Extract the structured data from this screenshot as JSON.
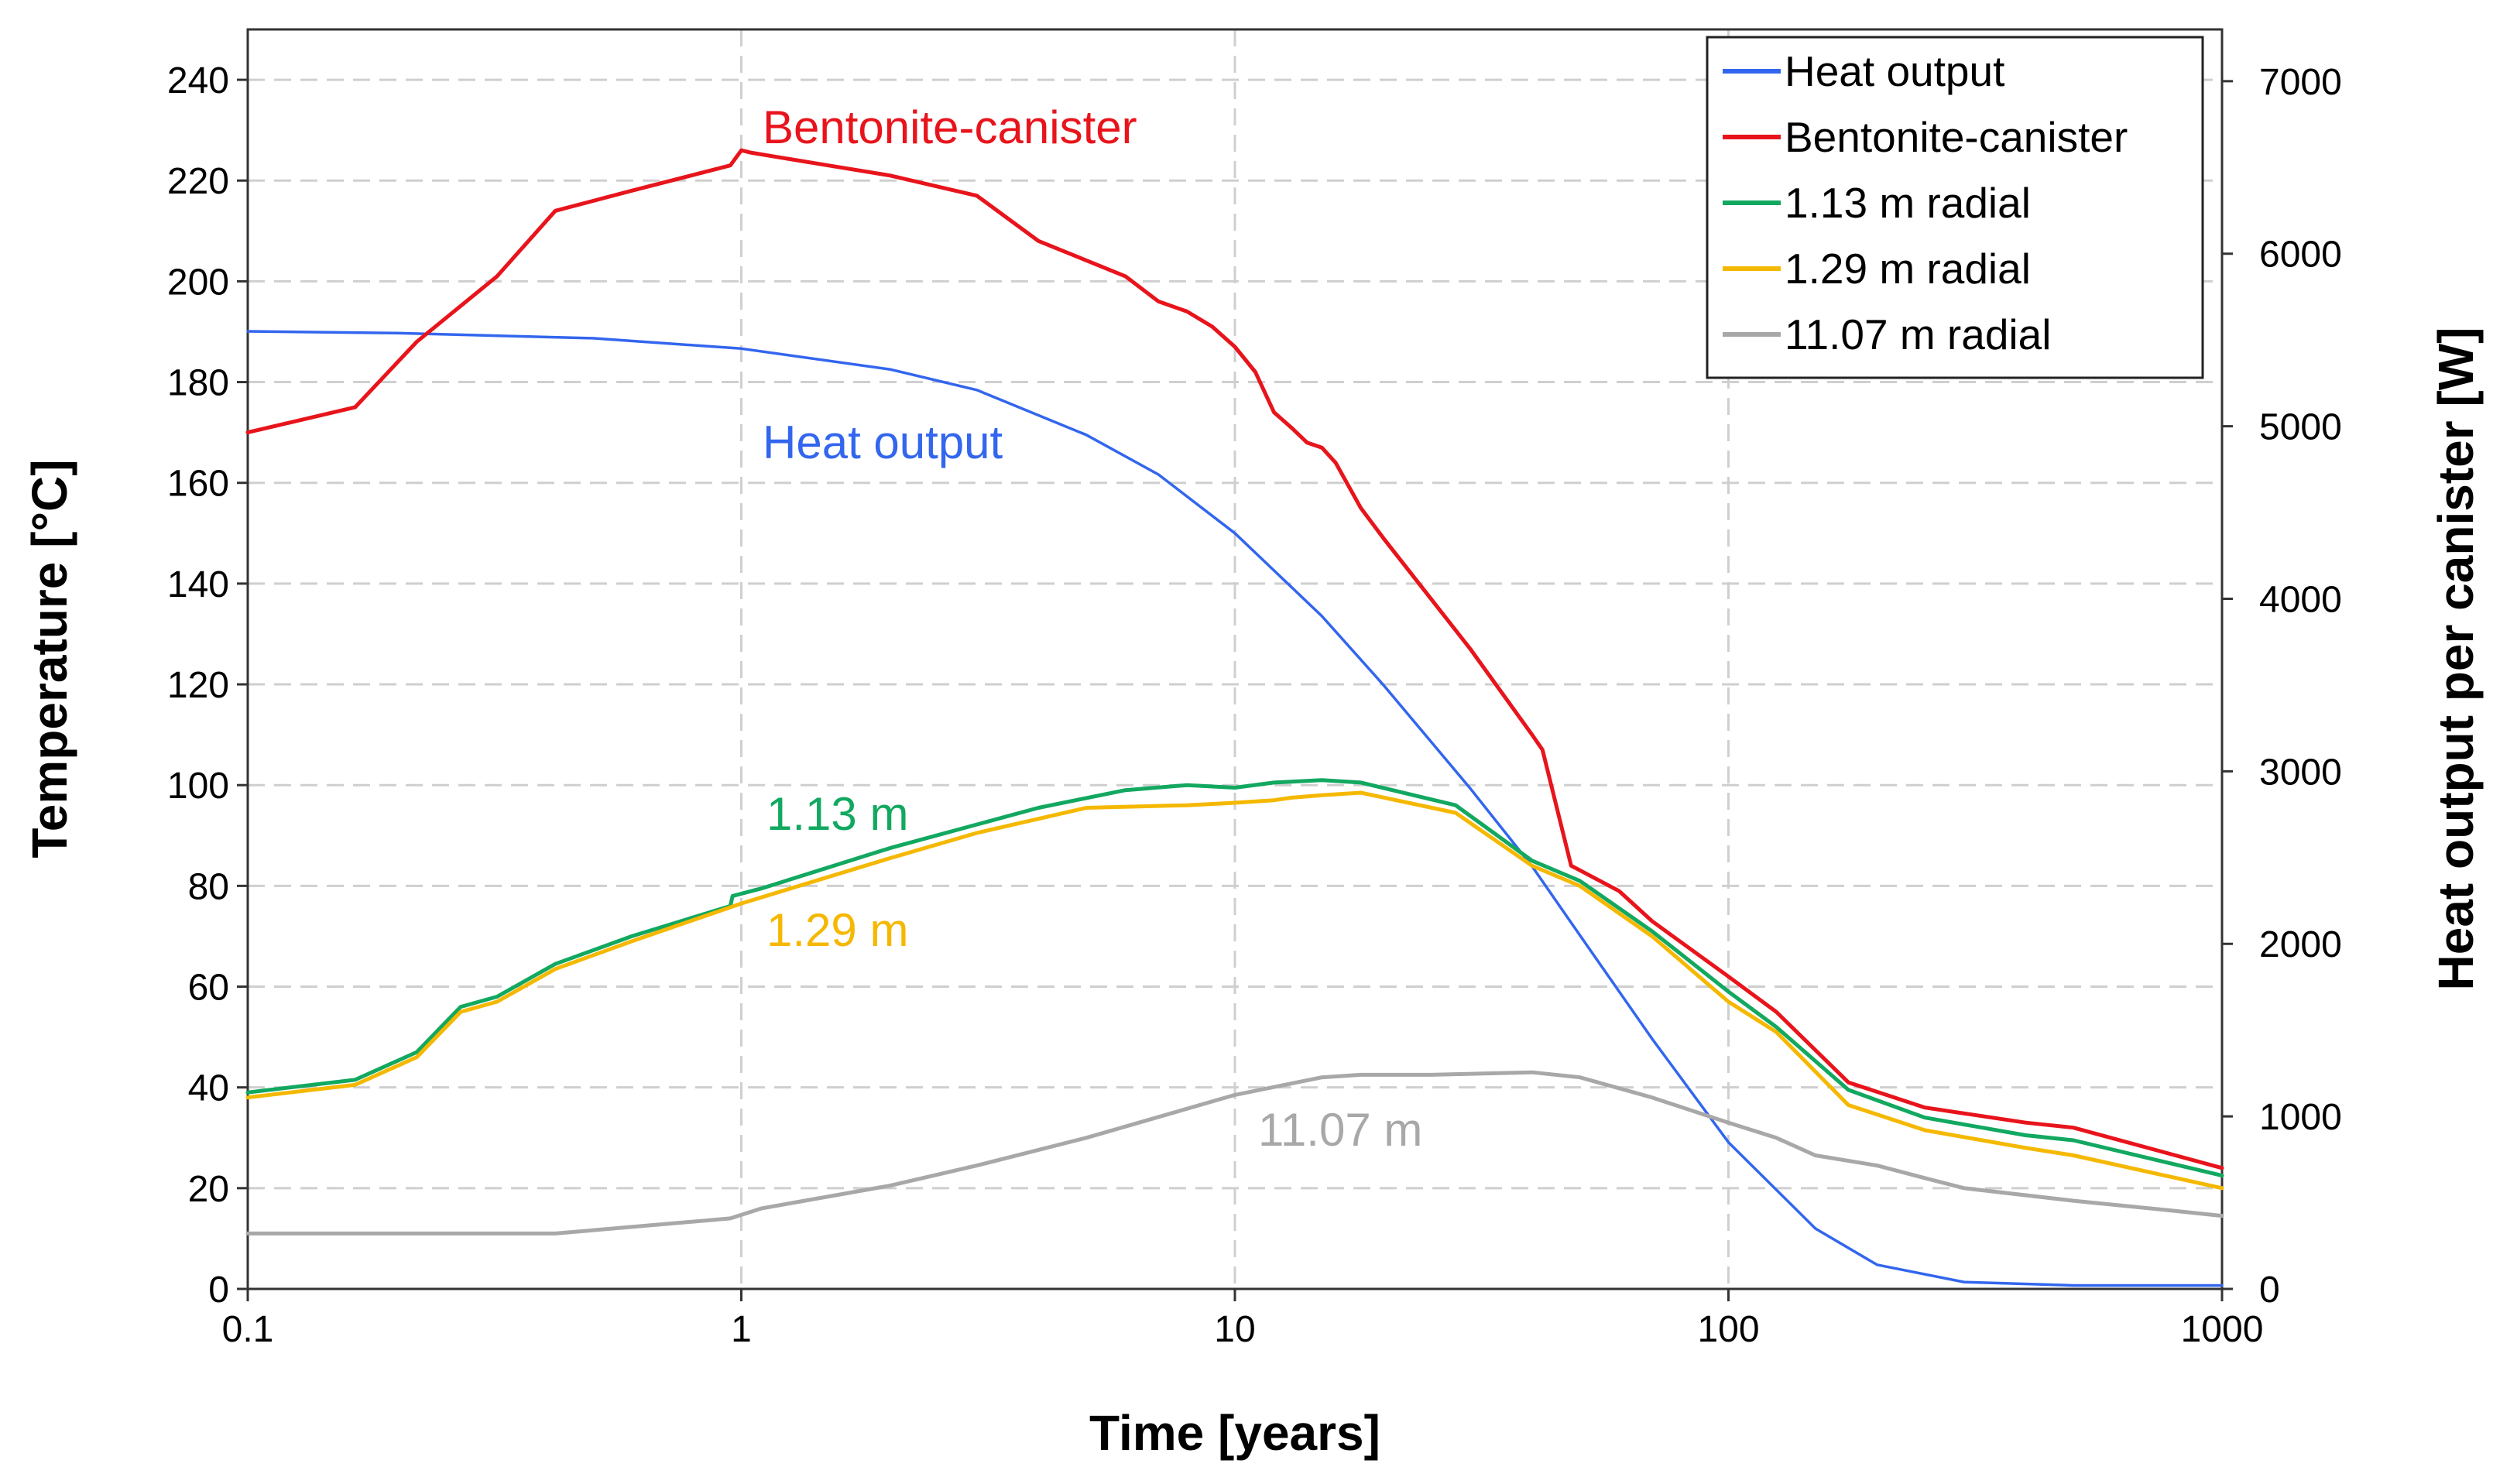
{
  "chart_data": {
    "type": "line",
    "title": "",
    "xlabel": "Time [years]",
    "ylabel": "Temperature [°C]",
    "y2label": "Heat output per canister [W]",
    "xscale": "log",
    "xlim": [
      0.1,
      1000
    ],
    "ylim": [
      0,
      250
    ],
    "y2lim": [
      0,
      7300
    ],
    "x_tick_labels": [
      "0.1",
      "1",
      "10",
      "100",
      "1000"
    ],
    "y_tick_labels": [
      "0",
      "20",
      "40",
      "60",
      "80",
      "100",
      "120",
      "140",
      "160",
      "180",
      "200",
      "220",
      "240"
    ],
    "y2_tick_labels": [
      "0",
      "1000",
      "2000",
      "3000",
      "4000",
      "5000",
      "6000",
      "7000"
    ],
    "grid": true,
    "legend_position": "top-right",
    "series": [
      {
        "name": "Heat output",
        "axis": "right",
        "color": "#3366ee",
        "x": [
          0.1,
          0.2,
          0.5,
          1,
          2,
          3,
          5,
          7,
          10,
          15,
          20,
          30,
          40,
          50,
          70,
          100,
          150,
          200,
          300,
          500,
          1000
        ],
        "values": [
          5550,
          5540,
          5510,
          5450,
          5330,
          5210,
          4950,
          4720,
          4380,
          3900,
          3500,
          2900,
          2450,
          2050,
          1450,
          850,
          350,
          140,
          40,
          20,
          20
        ]
      },
      {
        "name": "Bentonite-canister",
        "axis": "left",
        "color": "#e8141c",
        "x": [
          0.1,
          0.165,
          0.22,
          0.32,
          0.42,
          0.6,
          0.95,
          1.0,
          1.05,
          1.5,
          2,
          3,
          4,
          6,
          7,
          8,
          9,
          10,
          11,
          12,
          13,
          14,
          15,
          16,
          18,
          20,
          30,
          40,
          42,
          48,
          60,
          70,
          100,
          125,
          175,
          250,
          400,
          500,
          1000
        ],
        "values": [
          170,
          175,
          188,
          201,
          214,
          218,
          223,
          226,
          225.5,
          223,
          221,
          217,
          208,
          201,
          196,
          194,
          191,
          187,
          182,
          174,
          171,
          168,
          167,
          164,
          155,
          149,
          127,
          110,
          107,
          84,
          79,
          73,
          62,
          55,
          41,
          36,
          33,
          32,
          24
        ]
      },
      {
        "name": "1.13 m radial",
        "axis": "left",
        "color": "#12a860",
        "x": [
          0.1,
          0.165,
          0.22,
          0.27,
          0.32,
          0.42,
          0.6,
          0.95,
          0.96,
          1.1,
          2,
          4,
          6,
          8,
          10,
          12,
          15,
          18,
          28,
          40,
          50,
          70,
          100,
          125,
          175,
          250,
          400,
          500,
          1000
        ],
        "values": [
          39,
          41.5,
          47,
          56,
          58,
          64.5,
          70,
          76,
          78,
          79.5,
          87.5,
          95.5,
          99,
          100,
          99.5,
          100.5,
          101,
          100.5,
          96,
          85,
          81,
          71,
          59,
          52,
          39.5,
          34,
          30.5,
          29.5,
          22.5
        ]
      },
      {
        "name": "1.29 m radial",
        "axis": "left",
        "color": "#f5b800",
        "x": [
          0.1,
          0.165,
          0.22,
          0.27,
          0.32,
          0.42,
          0.6,
          1,
          2,
          3,
          5,
          8,
          10,
          12,
          13,
          15,
          18,
          28,
          40,
          50,
          70,
          100,
          125,
          175,
          250,
          400,
          500,
          1000
        ],
        "values": [
          38,
          40.5,
          46,
          55,
          57,
          63.5,
          69,
          76.5,
          85.5,
          90.5,
          95.5,
          96,
          96.5,
          97,
          97.5,
          98,
          98.5,
          94.5,
          84,
          80,
          70,
          57,
          51,
          36.5,
          31.5,
          28,
          26.5,
          20
        ]
      },
      {
        "name": "11.07 m radial",
        "axis": "left",
        "color": "#a8a8a8",
        "x": [
          0.1,
          0.2,
          0.42,
          0.95,
          1.1,
          2,
          3,
          5,
          10,
          15,
          18,
          25,
          40,
          50,
          70,
          100,
          125,
          150,
          200,
          250,
          300,
          500,
          800,
          1000
        ],
        "values": [
          11,
          11,
          11,
          14,
          16,
          20.5,
          24.5,
          30,
          38.5,
          42,
          42.5,
          42.5,
          43,
          42,
          38,
          33,
          30,
          26.5,
          24.5,
          22,
          20,
          17.5,
          15.5,
          14.5
        ]
      }
    ],
    "annotations": [
      {
        "text": "Bentonite-canister",
        "color": "#e8141c"
      },
      {
        "text": "Heat output",
        "color": "#3366ee"
      },
      {
        "text": "1.13 m",
        "color": "#12a860"
      },
      {
        "text": "1.29 m",
        "color": "#f5b800"
      },
      {
        "text": "11.07 m",
        "color": "#a8a8a8"
      }
    ]
  }
}
